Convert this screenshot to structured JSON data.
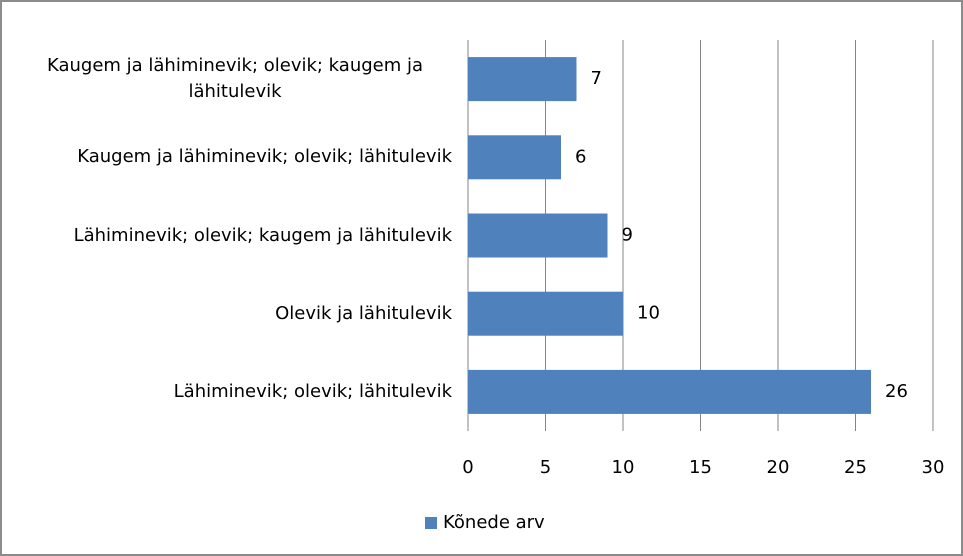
{
  "chart_data": {
    "type": "bar",
    "orientation": "horizontal",
    "categories": [
      "Kaugem ja lähiminevik; olevik; kaugem ja lähitulevik",
      "Kaugem ja lähiminevik; olevik; lähitulevik",
      "Lähiminevik; olevik; kaugem ja lähitulevik",
      "Olevik ja lähitulevik",
      "Lähiminevik; olevik; lähitulevik"
    ],
    "series": [
      {
        "name": "Kõnede arv",
        "color": "#4f81bd",
        "values": [
          7,
          6,
          9,
          10,
          26
        ]
      }
    ],
    "xlim": [
      0,
      30
    ],
    "xticks": [
      0,
      5,
      10,
      15,
      20,
      25,
      30
    ],
    "grid": true,
    "legend": "bottom"
  }
}
